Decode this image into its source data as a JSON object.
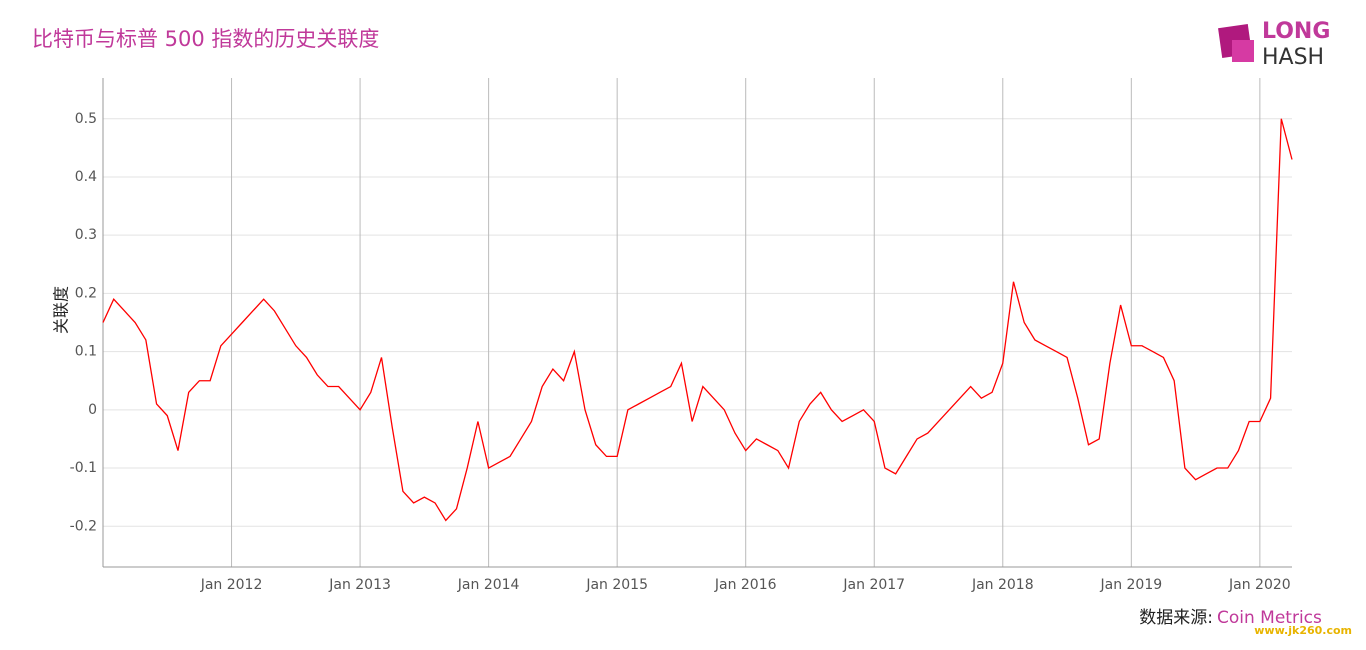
{
  "chart_data": {
    "type": "line",
    "title": "比特币与标普 500 指数的历史关联度",
    "y_label": "关联度",
    "source_label": "数据来源:",
    "source": "Coin Metrics",
    "logo": [
      "LONG",
      "HASH"
    ],
    "watermark": "www.jk260.com",
    "x": [
      "2011-01",
      "2011-02",
      "2011-03",
      "2011-04",
      "2011-05",
      "2011-06",
      "2011-07",
      "2011-08",
      "2011-09",
      "2011-10",
      "2011-11",
      "2011-12",
      "2012-01",
      "2012-02",
      "2012-03",
      "2012-04",
      "2012-05",
      "2012-06",
      "2012-07",
      "2012-08",
      "2012-09",
      "2012-10",
      "2012-11",
      "2012-12",
      "2013-01",
      "2013-02",
      "2013-03",
      "2013-04",
      "2013-05",
      "2013-06",
      "2013-07",
      "2013-08",
      "2013-09",
      "2013-10",
      "2013-11",
      "2013-12",
      "2014-01",
      "2014-02",
      "2014-03",
      "2014-04",
      "2014-05",
      "2014-06",
      "2014-07",
      "2014-08",
      "2014-09",
      "2014-10",
      "2014-11",
      "2014-12",
      "2015-01",
      "2015-02",
      "2015-03",
      "2015-04",
      "2015-05",
      "2015-06",
      "2015-07",
      "2015-08",
      "2015-09",
      "2015-10",
      "2015-11",
      "2015-12",
      "2016-01",
      "2016-02",
      "2016-03",
      "2016-04",
      "2016-05",
      "2016-06",
      "2016-07",
      "2016-08",
      "2016-09",
      "2016-10",
      "2016-11",
      "2016-12",
      "2017-01",
      "2017-02",
      "2017-03",
      "2017-04",
      "2017-05",
      "2017-06",
      "2017-07",
      "2017-08",
      "2017-09",
      "2017-10",
      "2017-11",
      "2017-12",
      "2018-01",
      "2018-02",
      "2018-03",
      "2018-04",
      "2018-05",
      "2018-06",
      "2018-07",
      "2018-08",
      "2018-09",
      "2018-10",
      "2018-11",
      "2018-12",
      "2019-01",
      "2019-02",
      "2019-03",
      "2019-04",
      "2019-05",
      "2019-06",
      "2019-07",
      "2019-08",
      "2019-09",
      "2019-10",
      "2019-11",
      "2019-12",
      "2020-01",
      "2020-02",
      "2020-03",
      "2020-04"
    ],
    "series": [
      {
        "name": "关联度",
        "color": "#ff0000",
        "values": [
          0.15,
          0.19,
          0.17,
          0.15,
          0.12,
          0.01,
          -0.01,
          -0.07,
          0.03,
          0.05,
          0.05,
          0.11,
          0.13,
          0.15,
          0.17,
          0.19,
          0.17,
          0.14,
          0.11,
          0.09,
          0.06,
          0.04,
          0.04,
          0.02,
          0.0,
          0.03,
          0.09,
          -0.03,
          -0.14,
          -0.16,
          -0.15,
          -0.16,
          -0.19,
          -0.17,
          -0.1,
          -0.02,
          -0.1,
          -0.09,
          -0.08,
          -0.05,
          -0.02,
          0.04,
          0.07,
          0.05,
          0.1,
          0.0,
          -0.06,
          -0.08,
          -0.08,
          0.0,
          0.01,
          0.02,
          0.03,
          0.04,
          0.08,
          -0.02,
          0.04,
          0.02,
          0.0,
          -0.04,
          -0.07,
          -0.05,
          -0.06,
          -0.07,
          -0.1,
          -0.02,
          0.01,
          0.03,
          0.0,
          -0.02,
          -0.01,
          0.0,
          -0.02,
          -0.1,
          -0.11,
          -0.08,
          -0.05,
          -0.04,
          -0.02,
          0.0,
          0.02,
          0.04,
          0.02,
          0.03,
          0.08,
          0.22,
          0.15,
          0.12,
          0.11,
          0.1,
          0.09,
          0.02,
          -0.06,
          -0.05,
          0.08,
          0.18,
          0.11,
          0.11,
          0.1,
          0.09,
          0.05,
          -0.1,
          -0.12,
          -0.11,
          -0.1,
          -0.1,
          -0.07,
          -0.02,
          -0.02,
          0.02,
          0.5,
          0.43
        ]
      }
    ],
    "xlim": [
      "2011-01",
      "2020-04"
    ],
    "xticks": [
      {
        "value": "2012-01",
        "label": "Jan 2012"
      },
      {
        "value": "2013-01",
        "label": "Jan 2013"
      },
      {
        "value": "2014-01",
        "label": "Jan 2014"
      },
      {
        "value": "2015-01",
        "label": "Jan 2015"
      },
      {
        "value": "2016-01",
        "label": "Jan 2016"
      },
      {
        "value": "2017-01",
        "label": "Jan 2017"
      },
      {
        "value": "2018-01",
        "label": "Jan 2018"
      },
      {
        "value": "2019-01",
        "label": "Jan 2019"
      },
      {
        "value": "2020-01",
        "label": "Jan 2020"
      }
    ],
    "ylim": [
      -0.27,
      0.57
    ],
    "yticks": [
      -0.2,
      -0.1,
      0,
      0.1,
      0.2,
      0.3,
      0.4,
      0.5
    ],
    "grid": true
  }
}
